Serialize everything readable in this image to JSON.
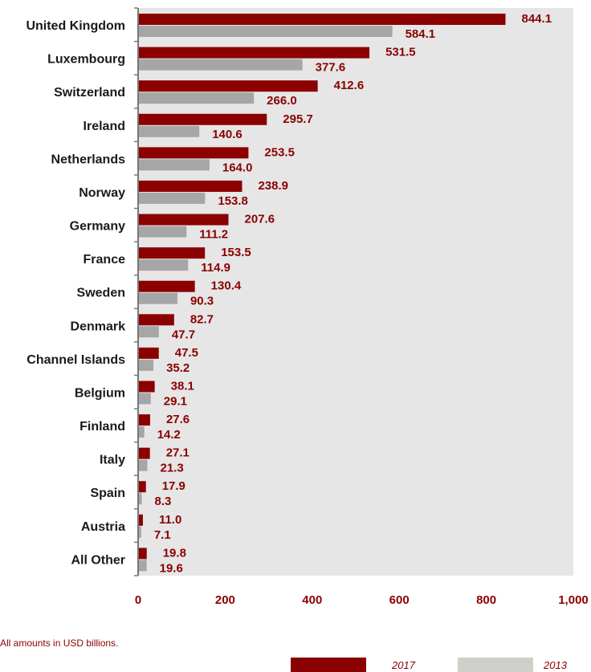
{
  "chart_data": {
    "type": "bar",
    "orientation": "horizontal",
    "categories": [
      "United Kingdom",
      "Luxembourg",
      "Switzerland",
      "Ireland",
      "Netherlands",
      "Norway",
      "Germany",
      "France",
      "Sweden",
      "Denmark",
      "Channel Islands",
      "Belgium",
      "Finland",
      "Italy",
      "Spain",
      "Austria",
      "All Other"
    ],
    "series": [
      {
        "name": "2017",
        "color": "#8b0000",
        "values": [
          844.1,
          531.5,
          412.6,
          295.7,
          253.5,
          238.9,
          207.6,
          153.5,
          130.4,
          82.7,
          47.5,
          38.1,
          27.6,
          27.1,
          17.9,
          11.0,
          19.8
        ],
        "labels": [
          "844.1",
          "531.5",
          "412.6",
          "295.7",
          "253.5",
          "238.9",
          "207.6",
          "153.5",
          "130.4",
          "82.7",
          "47.5",
          "38.1",
          "27.6",
          "27.1",
          "17.9",
          "11.0",
          "19.8"
        ]
      },
      {
        "name": "2013",
        "color": "#a6a6a6",
        "values": [
          584.1,
          377.6,
          266.0,
          140.6,
          164.0,
          153.8,
          111.2,
          114.9,
          90.3,
          47.7,
          35.2,
          29.1,
          14.2,
          21.3,
          8.3,
          7.1,
          19.6
        ],
        "labels": [
          "584.1",
          "377.6",
          "266.0",
          "140.6",
          "164.0",
          "153.8",
          "111.2",
          "114.9",
          "90.3",
          "47.7",
          "35.2",
          "29.1",
          "14.2",
          "21.3",
          "8.3",
          "7.1",
          "19.6"
        ]
      }
    ],
    "xlim": [
      0,
      1000
    ],
    "xticks": [
      0,
      200,
      400,
      600,
      800,
      1000
    ],
    "xtick_labels": [
      "0",
      "200",
      "400",
      "600",
      "800",
      "1,000"
    ],
    "grid": false,
    "plot_background": "#e6e6e6",
    "legend_placement": "bottom-right"
  },
  "footnote": "All amounts in USD billions.",
  "legend": [
    {
      "label": "2017",
      "color": "#8b0000"
    },
    {
      "label": "2013",
      "color": "#d0d0ca"
    }
  ],
  "colors": {
    "accent": "#8b0000",
    "secondary": "#a6a6a6",
    "plot_bg": "#e6e6e6"
  }
}
